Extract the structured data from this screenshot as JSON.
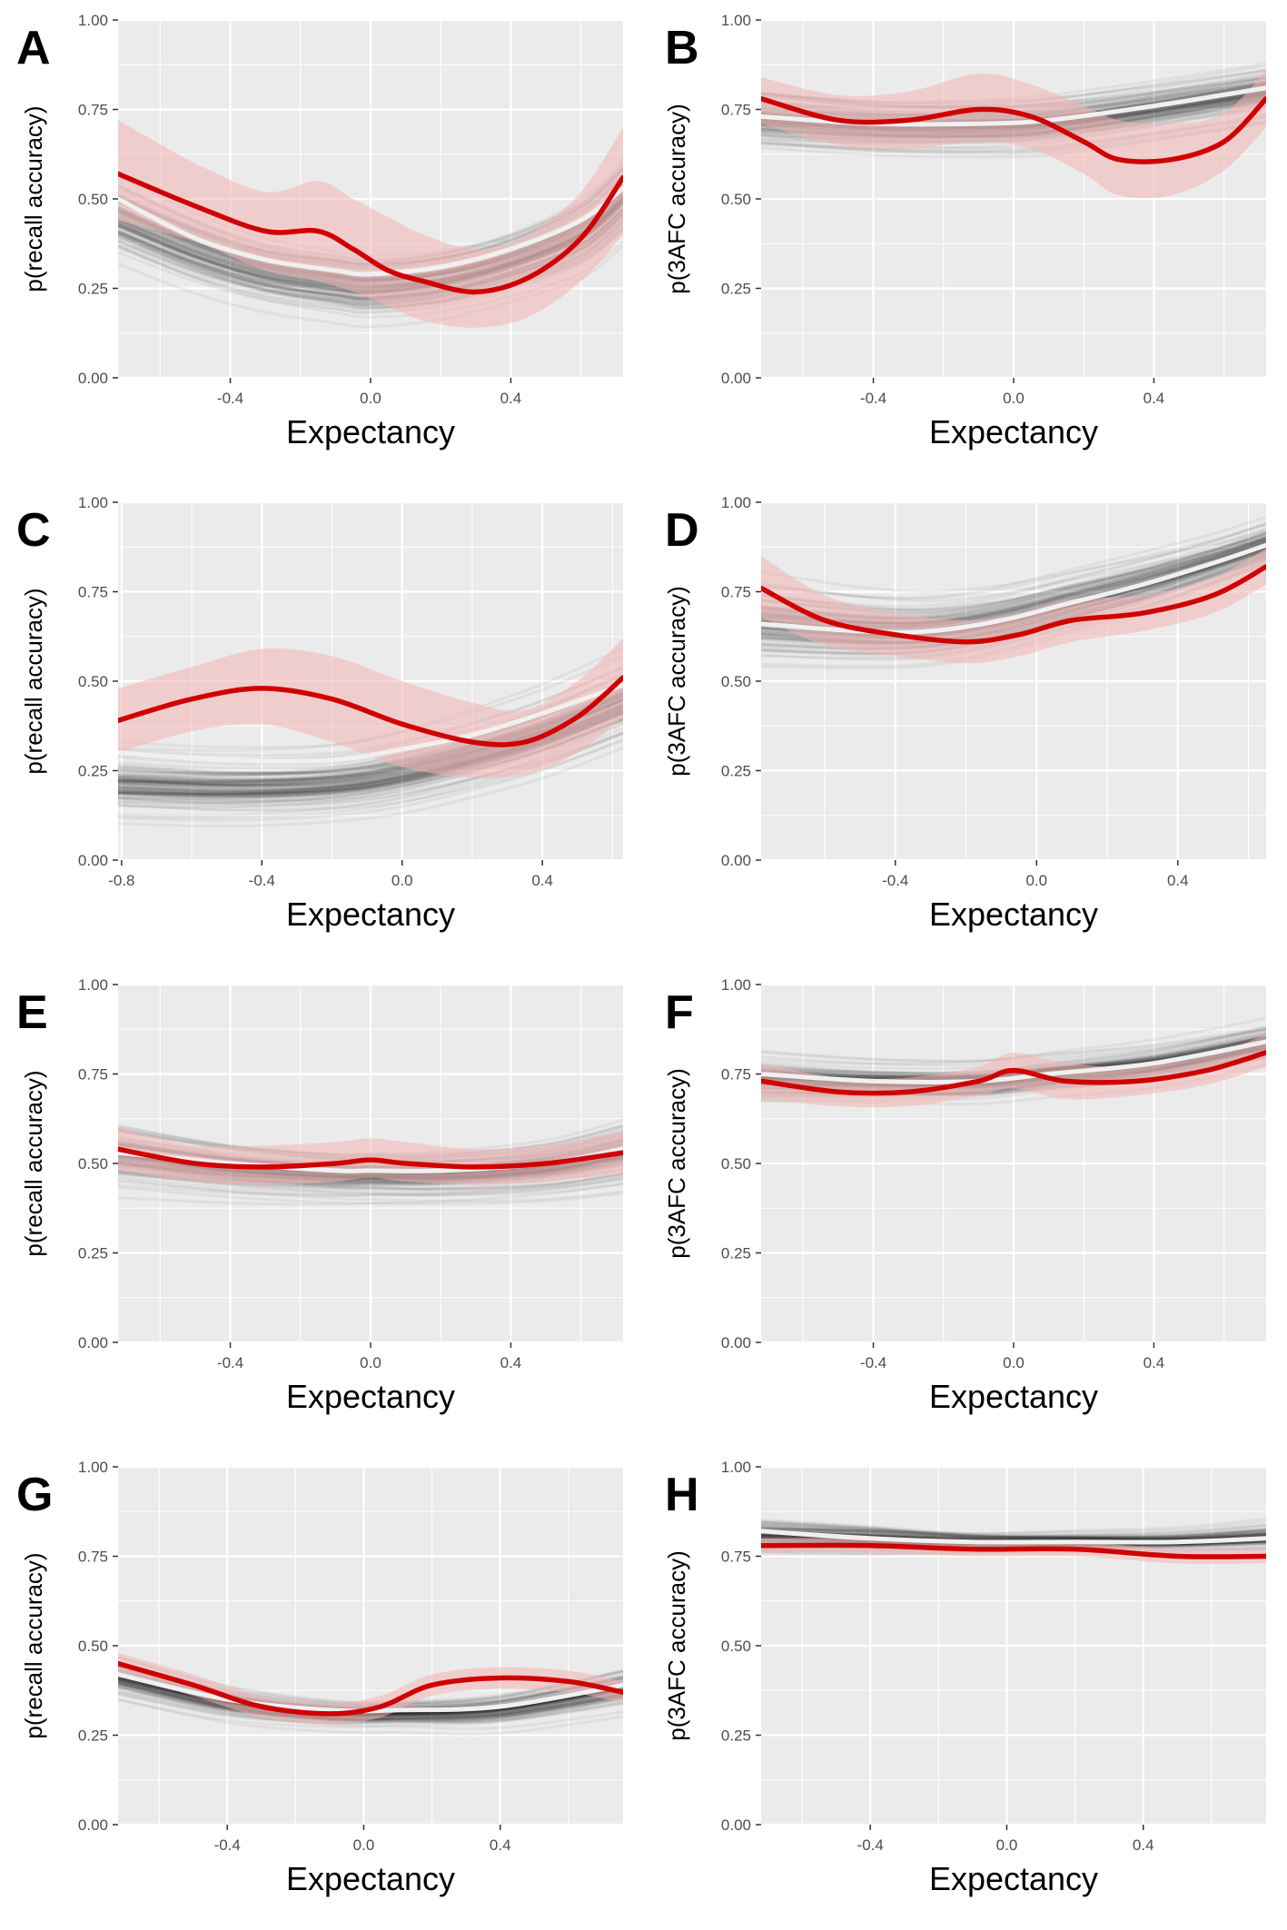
{
  "chart_data": [
    {
      "panel": "A",
      "type": "line",
      "xlabel": "Expectancy",
      "ylabel": "p(recall accuracy)",
      "xlim": [
        -0.72,
        0.72
      ],
      "ylim": [
        0,
        1
      ],
      "xticks": [
        -0.4,
        0.0,
        0.4
      ],
      "xtick_labels": [
        "-0.4",
        "0.0",
        "0.4"
      ],
      "yticks": [
        0,
        0.25,
        0.5,
        0.75,
        1
      ],
      "ytick_labels": [
        "0.00",
        "0.25",
        "0.50",
        "0.75",
        "1.00"
      ],
      "grid": true,
      "series": [
        {
          "color": "#d10000",
          "ribbon": "#f4b5b5",
          "x": [
            -0.72,
            -0.5,
            -0.3,
            -0.15,
            -0.05,
            0.05,
            0.15,
            0.3,
            0.45,
            0.6,
            0.72
          ],
          "y": [
            0.57,
            0.48,
            0.41,
            0.41,
            0.36,
            0.3,
            0.27,
            0.24,
            0.28,
            0.39,
            0.56
          ],
          "lower": [
            0.44,
            0.38,
            0.3,
            0.27,
            0.24,
            0.2,
            0.16,
            0.14,
            0.17,
            0.27,
            0.4
          ],
          "upper": [
            0.72,
            0.6,
            0.52,
            0.55,
            0.5,
            0.45,
            0.4,
            0.36,
            0.4,
            0.52,
            0.7
          ]
        },
        {
          "color": "#f0f0f0",
          "x": [
            -0.72,
            -0.5,
            -0.3,
            -0.1,
            0.0,
            0.2,
            0.4,
            0.6,
            0.72
          ],
          "y": [
            0.5,
            0.39,
            0.33,
            0.3,
            0.29,
            0.31,
            0.36,
            0.44,
            0.53
          ]
        }
      ],
      "simulation_band": {
        "center": [
          0.44,
          0.35,
          0.29,
          0.26,
          0.25,
          0.27,
          0.32,
          0.4,
          0.5
        ],
        "spread": [
          0.16,
          0.15,
          0.14,
          0.14,
          0.14,
          0.14,
          0.14,
          0.16,
          0.17
        ]
      }
    },
    {
      "panel": "B",
      "type": "line",
      "xlabel": "Expectancy",
      "ylabel": "p(3AFC accuracy)",
      "xlim": [
        -0.72,
        0.72
      ],
      "ylim": [
        0,
        1
      ],
      "xticks": [
        -0.4,
        0.0,
        0.4
      ],
      "xtick_labels": [
        "-0.4",
        "0.0",
        "0.4"
      ],
      "yticks": [
        0,
        0.25,
        0.5,
        0.75,
        1
      ],
      "ytick_labels": [
        "0.00",
        "0.25",
        "0.50",
        "0.75",
        "1.00"
      ],
      "grid": true,
      "series": [
        {
          "color": "#d10000",
          "ribbon": "#f4b5b5",
          "x": [
            -0.72,
            -0.5,
            -0.3,
            -0.1,
            0.05,
            0.2,
            0.3,
            0.45,
            0.6,
            0.72
          ],
          "y": [
            0.78,
            0.72,
            0.72,
            0.75,
            0.73,
            0.66,
            0.61,
            0.61,
            0.66,
            0.78
          ],
          "lower": [
            0.71,
            0.65,
            0.64,
            0.66,
            0.64,
            0.57,
            0.51,
            0.51,
            0.58,
            0.7
          ],
          "upper": [
            0.84,
            0.79,
            0.8,
            0.85,
            0.82,
            0.76,
            0.72,
            0.71,
            0.74,
            0.86
          ]
        },
        {
          "color": "#f0f0f0",
          "x": [
            -0.72,
            -0.4,
            -0.1,
            0.1,
            0.4,
            0.72
          ],
          "y": [
            0.73,
            0.71,
            0.71,
            0.72,
            0.76,
            0.81
          ]
        }
      ],
      "simulation_band": {
        "center": [
          0.72,
          0.7,
          0.7,
          0.71,
          0.75,
          0.8
        ],
        "spread": [
          0.14,
          0.13,
          0.13,
          0.13,
          0.12,
          0.11
        ]
      }
    },
    {
      "panel": "C",
      "type": "line",
      "xlabel": "Expectancy",
      "ylabel": "p(recall accuracy)",
      "xlim": [
        -0.81,
        0.63
      ],
      "ylim": [
        0,
        1
      ],
      "xticks": [
        -0.8,
        -0.4,
        0.0,
        0.4
      ],
      "xtick_labels": [
        "-0.8",
        "-0.4",
        "0.0",
        "0.4"
      ],
      "yticks": [
        0,
        0.25,
        0.5,
        0.75,
        1
      ],
      "ytick_labels": [
        "0.00",
        "0.25",
        "0.50",
        "0.75",
        "1.00"
      ],
      "grid": true,
      "series": [
        {
          "color": "#d10000",
          "ribbon": "#f4b5b5",
          "x": [
            -0.81,
            -0.6,
            -0.4,
            -0.2,
            0.0,
            0.2,
            0.35,
            0.5,
            0.63
          ],
          "y": [
            0.39,
            0.45,
            0.48,
            0.45,
            0.38,
            0.33,
            0.33,
            0.4,
            0.51
          ],
          "lower": [
            0.3,
            0.36,
            0.38,
            0.33,
            0.26,
            0.23,
            0.24,
            0.3,
            0.4
          ],
          "upper": [
            0.48,
            0.54,
            0.59,
            0.57,
            0.5,
            0.44,
            0.42,
            0.5,
            0.62
          ]
        },
        {
          "color": "#f0f0f0",
          "x": [
            -0.81,
            -0.5,
            -0.2,
            0.0,
            0.2,
            0.4,
            0.63
          ],
          "y": [
            0.3,
            0.28,
            0.28,
            0.31,
            0.35,
            0.41,
            0.49
          ]
        }
      ],
      "simulation_band": {
        "center": [
          0.22,
          0.21,
          0.22,
          0.25,
          0.3,
          0.36,
          0.45
        ],
        "spread": [
          0.14,
          0.14,
          0.14,
          0.15,
          0.16,
          0.17,
          0.18
        ]
      }
    },
    {
      "panel": "D",
      "type": "line",
      "xlabel": "Expectancy",
      "ylabel": "p(3AFC accuracy)",
      "xlim": [
        -0.78,
        0.65
      ],
      "ylim": [
        0,
        1
      ],
      "xticks": [
        -0.4,
        0.0,
        0.4
      ],
      "xtick_labels": [
        "-0.4",
        "0.0",
        "0.4"
      ],
      "yticks": [
        0,
        0.25,
        0.5,
        0.75,
        1
      ],
      "ytick_labels": [
        "0.00",
        "0.25",
        "0.50",
        "0.75",
        "1.00"
      ],
      "grid": true,
      "series": [
        {
          "color": "#d10000",
          "ribbon": "#f4b5b5",
          "x": [
            -0.78,
            -0.6,
            -0.4,
            -0.2,
            -0.05,
            0.1,
            0.3,
            0.5,
            0.65
          ],
          "y": [
            0.76,
            0.67,
            0.63,
            0.61,
            0.63,
            0.67,
            0.69,
            0.74,
            0.82
          ],
          "lower": [
            0.68,
            0.6,
            0.57,
            0.55,
            0.57,
            0.61,
            0.64,
            0.69,
            0.77
          ],
          "upper": [
            0.85,
            0.74,
            0.69,
            0.67,
            0.69,
            0.73,
            0.74,
            0.79,
            0.87
          ]
        },
        {
          "color": "#f0f0f0",
          "x": [
            -0.78,
            -0.5,
            -0.3,
            -0.1,
            0.1,
            0.3,
            0.5,
            0.65
          ],
          "y": [
            0.66,
            0.64,
            0.64,
            0.67,
            0.72,
            0.77,
            0.83,
            0.88
          ]
        }
      ],
      "simulation_band": {
        "center": [
          0.66,
          0.64,
          0.64,
          0.67,
          0.72,
          0.77,
          0.83,
          0.88
        ],
        "spread": [
          0.17,
          0.15,
          0.14,
          0.13,
          0.12,
          0.11,
          0.09,
          0.08
        ]
      }
    },
    {
      "panel": "E",
      "type": "line",
      "xlabel": "Expectancy",
      "ylabel": "p(recall accuracy)",
      "xlim": [
        -0.72,
        0.72
      ],
      "ylim": [
        0,
        1
      ],
      "xticks": [
        -0.4,
        0.0,
        0.4
      ],
      "xtick_labels": [
        "-0.4",
        "0.0",
        "0.4"
      ],
      "yticks": [
        0,
        0.25,
        0.5,
        0.75,
        1
      ],
      "ytick_labels": [
        "0.00",
        "0.25",
        "0.50",
        "0.75",
        "1.00"
      ],
      "grid": true,
      "series": [
        {
          "color": "#d10000",
          "ribbon": "#f4b5b5",
          "x": [
            -0.72,
            -0.5,
            -0.3,
            -0.1,
            0.0,
            0.1,
            0.3,
            0.5,
            0.72
          ],
          "y": [
            0.54,
            0.5,
            0.49,
            0.5,
            0.51,
            0.5,
            0.49,
            0.5,
            0.53
          ],
          "lower": [
            0.48,
            0.45,
            0.44,
            0.45,
            0.46,
            0.45,
            0.44,
            0.45,
            0.47
          ],
          "upper": [
            0.6,
            0.55,
            0.55,
            0.56,
            0.57,
            0.56,
            0.54,
            0.55,
            0.59
          ]
        },
        {
          "color": "#f0f0f0",
          "x": [
            -0.72,
            -0.4,
            -0.1,
            0.0,
            0.2,
            0.5,
            0.72
          ],
          "y": [
            0.53,
            0.5,
            0.48,
            0.48,
            0.48,
            0.5,
            0.54
          ]
        }
      ],
      "simulation_band": {
        "center": [
          0.53,
          0.49,
          0.47,
          0.47,
          0.47,
          0.49,
          0.53
        ],
        "spread": [
          0.13,
          0.11,
          0.1,
          0.1,
          0.1,
          0.11,
          0.13
        ]
      }
    },
    {
      "panel": "F",
      "type": "line",
      "xlabel": "Expectancy",
      "ylabel": "p(3AFC accuracy)",
      "xlim": [
        -0.72,
        0.72
      ],
      "ylim": [
        0,
        1
      ],
      "xticks": [
        -0.4,
        0.0,
        0.4
      ],
      "xtick_labels": [
        "-0.4",
        "0.0",
        "0.4"
      ],
      "yticks": [
        0,
        0.25,
        0.5,
        0.75,
        1
      ],
      "ytick_labels": [
        "0.00",
        "0.25",
        "0.50",
        "0.75",
        "1.00"
      ],
      "grid": true,
      "series": [
        {
          "color": "#d10000",
          "ribbon": "#f4b5b5",
          "x": [
            -0.72,
            -0.5,
            -0.3,
            -0.1,
            0.0,
            0.15,
            0.35,
            0.55,
            0.72
          ],
          "y": [
            0.73,
            0.7,
            0.7,
            0.73,
            0.76,
            0.73,
            0.73,
            0.76,
            0.81
          ],
          "lower": [
            0.68,
            0.66,
            0.66,
            0.69,
            0.71,
            0.68,
            0.69,
            0.72,
            0.77
          ],
          "upper": [
            0.78,
            0.74,
            0.74,
            0.77,
            0.81,
            0.78,
            0.77,
            0.8,
            0.86
          ]
        },
        {
          "color": "#f0f0f0",
          "x": [
            -0.72,
            -0.4,
            -0.1,
            0.1,
            0.4,
            0.72
          ],
          "y": [
            0.75,
            0.73,
            0.73,
            0.75,
            0.78,
            0.84
          ]
        }
      ],
      "simulation_band": {
        "center": [
          0.74,
          0.73,
          0.73,
          0.75,
          0.78,
          0.84
        ],
        "spread": [
          0.09,
          0.08,
          0.08,
          0.08,
          0.08,
          0.07
        ]
      }
    },
    {
      "panel": "G",
      "type": "line",
      "xlabel": "Expectancy",
      "ylabel": "p(recall accuracy)",
      "xlim": [
        -0.72,
        0.76
      ],
      "ylim": [
        0,
        1
      ],
      "xticks": [
        -0.4,
        0.0,
        0.4
      ],
      "xtick_labels": [
        "-0.4",
        "0.0",
        "0.4"
      ],
      "yticks": [
        0,
        0.25,
        0.5,
        0.75,
        1
      ],
      "ytick_labels": [
        "0.00",
        "0.25",
        "0.50",
        "0.75",
        "1.00"
      ],
      "grid": true,
      "series": [
        {
          "color": "#d10000",
          "ribbon": "#f4b5b5",
          "x": [
            -0.72,
            -0.5,
            -0.3,
            -0.1,
            0.05,
            0.2,
            0.4,
            0.6,
            0.76
          ],
          "y": [
            0.45,
            0.39,
            0.33,
            0.31,
            0.33,
            0.39,
            0.41,
            0.4,
            0.37
          ],
          "lower": [
            0.42,
            0.36,
            0.3,
            0.28,
            0.3,
            0.36,
            0.38,
            0.37,
            0.34
          ],
          "upper": [
            0.48,
            0.42,
            0.36,
            0.34,
            0.36,
            0.42,
            0.44,
            0.43,
            0.4
          ]
        },
        {
          "color": "#f0f0f0",
          "x": [
            -0.72,
            -0.4,
            -0.1,
            0.1,
            0.4,
            0.76
          ],
          "y": [
            0.42,
            0.35,
            0.32,
            0.32,
            0.33,
            0.39
          ]
        }
      ],
      "simulation_band": {
        "center": [
          0.41,
          0.34,
          0.31,
          0.31,
          0.32,
          0.38
        ],
        "spread": [
          0.08,
          0.07,
          0.06,
          0.06,
          0.07,
          0.08
        ]
      }
    },
    {
      "panel": "H",
      "type": "line",
      "xlabel": "Expectancy",
      "ylabel": "p(3AFC accuracy)",
      "xlim": [
        -0.72,
        0.76
      ],
      "ylim": [
        0,
        1
      ],
      "xticks": [
        -0.4,
        0.0,
        0.4
      ],
      "xtick_labels": [
        "-0.4",
        "0.0",
        "0.4"
      ],
      "yticks": [
        0,
        0.25,
        0.5,
        0.75,
        1
      ],
      "ytick_labels": [
        "0.00",
        "0.25",
        "0.50",
        "0.75",
        "1.00"
      ],
      "grid": true,
      "series": [
        {
          "color": "#d10000",
          "ribbon": "#f4b5b5",
          "x": [
            -0.72,
            -0.4,
            -0.1,
            0.2,
            0.5,
            0.76
          ],
          "y": [
            0.78,
            0.78,
            0.77,
            0.77,
            0.75,
            0.75
          ],
          "lower": [
            0.76,
            0.76,
            0.75,
            0.75,
            0.73,
            0.73
          ],
          "upper": [
            0.8,
            0.8,
            0.79,
            0.79,
            0.77,
            0.77
          ]
        },
        {
          "color": "#f0f0f0",
          "x": [
            -0.72,
            -0.4,
            -0.1,
            0.2,
            0.5,
            0.76
          ],
          "y": [
            0.82,
            0.8,
            0.79,
            0.79,
            0.79,
            0.8
          ]
        }
      ],
      "simulation_band": {
        "center": [
          0.81,
          0.8,
          0.79,
          0.79,
          0.79,
          0.8
        ],
        "spread": [
          0.05,
          0.05,
          0.04,
          0.04,
          0.04,
          0.05
        ]
      }
    }
  ]
}
